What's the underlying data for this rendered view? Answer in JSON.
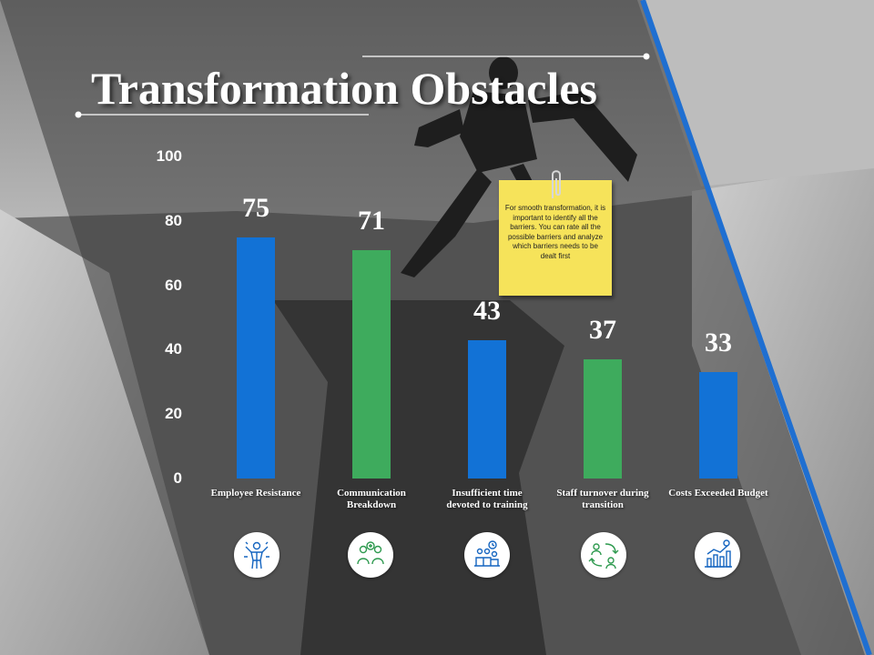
{
  "title": "Transformation Obstacles",
  "note": {
    "text": "For smooth transformation, it is important to identify all the barriers. You can rate all the possible barriers and analyze which barriers needs to be dealt first"
  },
  "colors": {
    "blue": "#1272d6",
    "green": "#3eab5d",
    "accent_stripe": "#1f6fd1",
    "note_yellow": "#f6e35a"
  },
  "chart_data": {
    "type": "bar",
    "categories": [
      "Employee Resistance",
      "Communication Breakdown",
      "Insufficient time devoted to training",
      "Staff turnover during transition",
      "Costs Exceeded Budget"
    ],
    "values": [
      75,
      71,
      43,
      37,
      33
    ],
    "bar_colors": [
      "#1272d6",
      "#3eab5d",
      "#1272d6",
      "#3eab5d",
      "#1272d6"
    ],
    "ylim": [
      0,
      100
    ],
    "yticks": [
      "100",
      "80",
      "60",
      "40",
      "20",
      "0"
    ],
    "value_labels": [
      "75",
      "71",
      "43",
      "37",
      "33"
    ],
    "grid": false,
    "title": "",
    "xlabel": "",
    "ylabel": ""
  },
  "icons": [
    "employee-icon",
    "communication-icon",
    "training-icon",
    "staff-turnover-icon",
    "costs-chart-icon"
  ]
}
